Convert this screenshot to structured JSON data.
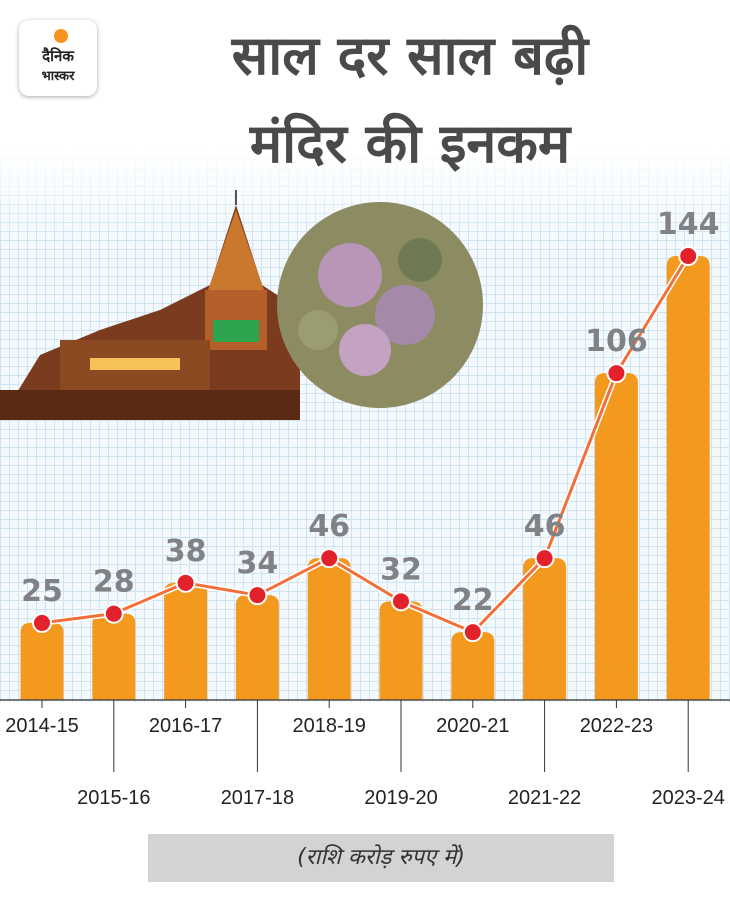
{
  "brand": {
    "line1": "दैनिक",
    "line2": "भास्कर"
  },
  "title": {
    "line1": "साल दर साल बढ़ी",
    "line2": "मंदिर की इनकम"
  },
  "unit_note": "(राशि करोड़ रुपए में)",
  "colors": {
    "bar": "#f39a1e",
    "line": "#f26f3a",
    "marker": "#e3212b",
    "value_label": "#808285",
    "axis": "#333333"
  },
  "chart_data": {
    "type": "bar",
    "title": "साल दर साल बढ़ी मंदिर की इनकम",
    "xlabel": "",
    "ylabel": "",
    "categories": [
      "2014-15",
      "2015-16",
      "2016-17",
      "2017-18",
      "2018-19",
      "2019-20",
      "2020-21",
      "2021-22",
      "2022-23",
      "2023-24"
    ],
    "values": [
      25,
      28,
      38,
      34,
      46,
      32,
      22,
      46,
      106,
      144
    ],
    "overlay": "line-with-markers",
    "ylim": [
      0,
      160
    ],
    "grid": true,
    "legend": "none"
  }
}
